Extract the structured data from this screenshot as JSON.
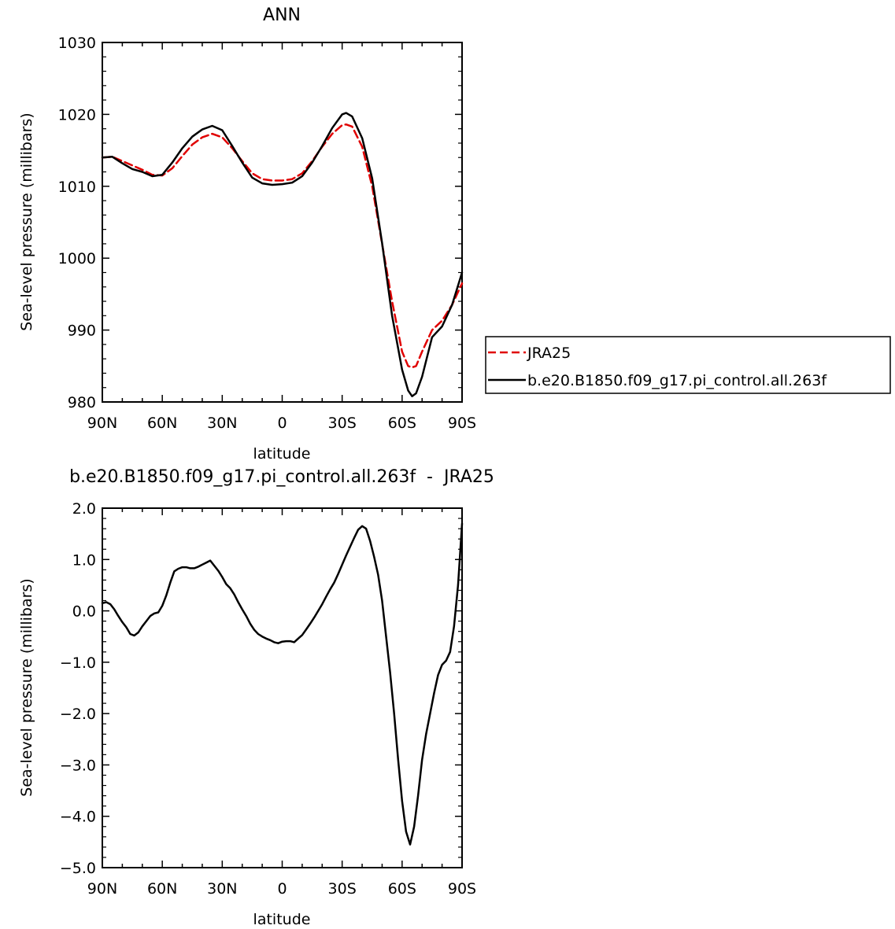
{
  "chart_data": [
    {
      "type": "line",
      "title": "ANN",
      "xlabel": "latitude",
      "ylabel": "Sea-level pressure (millibars)",
      "xlim": [
        90,
        -90
      ],
      "ylim": [
        980,
        1030
      ],
      "xticks": [
        {
          "value": 90,
          "label": "90N"
        },
        {
          "value": 60,
          "label": "60N"
        },
        {
          "value": 30,
          "label": "30N"
        },
        {
          "value": 0,
          "label": "0"
        },
        {
          "value": -30,
          "label": "30S"
        },
        {
          "value": -60,
          "label": "60S"
        },
        {
          "value": -90,
          "label": "90S"
        }
      ],
      "yticks": [
        {
          "value": 980,
          "label": "980"
        },
        {
          "value": 990,
          "label": "990"
        },
        {
          "value": 1000,
          "label": "1000"
        },
        {
          "value": 1010,
          "label": "1010"
        },
        {
          "value": 1020,
          "label": "1020"
        },
        {
          "value": 1030,
          "label": "1030"
        }
      ],
      "legend": {
        "position": "right"
      },
      "series": [
        {
          "name": "JRA25",
          "color": "#e00000",
          "dash": "dashed",
          "x": [
            90,
            85,
            80,
            75,
            70,
            65,
            60,
            55,
            50,
            45,
            40,
            35,
            30,
            25,
            20,
            15,
            10,
            5,
            0,
            -5,
            -10,
            -15,
            -20,
            -25,
            -30,
            -32,
            -35,
            -40,
            -45,
            -50,
            -55,
            -60,
            -63,
            -65,
            -67,
            -70,
            -75,
            -80,
            -85,
            -90
          ],
          "y": [
            1014.0,
            1014.1,
            1013.5,
            1012.9,
            1012.3,
            1011.6,
            1011.5,
            1012.5,
            1014.2,
            1015.8,
            1016.8,
            1017.3,
            1016.8,
            1015.3,
            1013.5,
            1011.8,
            1011.0,
            1010.8,
            1010.8,
            1011.0,
            1011.8,
            1013.5,
            1015.5,
            1017.3,
            1018.5,
            1018.6,
            1018.3,
            1015.5,
            1010.0,
            1002.0,
            994.0,
            987.0,
            985.0,
            984.8,
            985.0,
            987.0,
            990.0,
            991.3,
            993.5,
            996.5
          ]
        },
        {
          "name": "b.e20.B1850.f09_g17.pi_control.all.263f",
          "color": "#000000",
          "dash": "solid",
          "x": [
            90,
            85,
            80,
            75,
            70,
            65,
            60,
            55,
            50,
            45,
            40,
            35,
            30,
            25,
            20,
            15,
            10,
            5,
            0,
            -5,
            -10,
            -15,
            -20,
            -25,
            -30,
            -32,
            -35,
            -40,
            -45,
            -50,
            -55,
            -60,
            -63,
            -65,
            -67,
            -70,
            -75,
            -80,
            -85,
            -90
          ],
          "y": [
            1014.0,
            1014.1,
            1013.2,
            1012.4,
            1012.0,
            1011.4,
            1011.6,
            1013.3,
            1015.3,
            1016.9,
            1017.9,
            1018.4,
            1017.8,
            1015.6,
            1013.3,
            1011.2,
            1010.4,
            1010.2,
            1010.3,
            1010.5,
            1011.4,
            1013.3,
            1015.6,
            1018.1,
            1020.0,
            1020.2,
            1019.7,
            1016.7,
            1011.1,
            1002.1,
            992.0,
            984.5,
            981.6,
            980.8,
            981.2,
            983.5,
            989.0,
            990.5,
            993.5,
            998.0
          ]
        }
      ]
    },
    {
      "type": "line",
      "title": "b.e20.B1850.f09_g17.pi_control.all.263f  -  JRA25",
      "xlabel": "latitude",
      "ylabel": "Sea-level pressure (millibars)",
      "xlim": [
        90,
        -90
      ],
      "ylim": [
        -5.0,
        2.0
      ],
      "xticks": [
        {
          "value": 90,
          "label": "90N"
        },
        {
          "value": 60,
          "label": "60N"
        },
        {
          "value": 30,
          "label": "30N"
        },
        {
          "value": 0,
          "label": "0"
        },
        {
          "value": -30,
          "label": "30S"
        },
        {
          "value": -60,
          "label": "60S"
        },
        {
          "value": -90,
          "label": "90S"
        }
      ],
      "yticks": [
        {
          "value": -5,
          "label": "−5.0"
        },
        {
          "value": -4,
          "label": "−4.0"
        },
        {
          "value": -3,
          "label": "−3.0"
        },
        {
          "value": -2,
          "label": "−2.0"
        },
        {
          "value": -1,
          "label": "−1.0"
        },
        {
          "value": 0,
          "label": "0.0"
        },
        {
          "value": 1,
          "label": "1.0"
        },
        {
          "value": 2,
          "label": "2.0"
        }
      ],
      "series": [
        {
          "color": "#000000",
          "dash": "solid",
          "x": [
            90,
            88,
            86,
            84,
            82,
            80,
            78,
            76,
            74,
            72,
            70,
            68,
            66,
            64,
            62,
            60,
            58,
            56,
            54,
            52,
            50,
            48,
            46,
            44,
            42,
            40,
            38,
            36,
            34,
            32,
            30,
            28,
            26,
            24,
            22,
            20,
            18,
            16,
            14,
            12,
            10,
            8,
            6,
            4,
            2,
            0,
            -2,
            -4,
            -6,
            -8,
            -10,
            -12,
            -14,
            -16,
            -18,
            -20,
            -22,
            -24,
            -26,
            -28,
            -30,
            -32,
            -34,
            -36,
            -38,
            -40,
            -42,
            -44,
            -46,
            -48,
            -50,
            -52,
            -54,
            -56,
            -58,
            -60,
            -62,
            -64,
            -66,
            -68,
            -70,
            -72,
            -74,
            -76,
            -78,
            -80,
            -82,
            -84,
            -86,
            -88,
            -90
          ],
          "y": [
            0.15,
            0.17,
            0.13,
            0.03,
            -0.1,
            -0.22,
            -0.32,
            -0.45,
            -0.48,
            -0.42,
            -0.3,
            -0.2,
            -0.1,
            -0.05,
            -0.03,
            0.1,
            0.3,
            0.55,
            0.77,
            0.82,
            0.85,
            0.85,
            0.83,
            0.83,
            0.86,
            0.9,
            0.94,
            0.98,
            0.88,
            0.78,
            0.66,
            0.52,
            0.44,
            0.32,
            0.17,
            0.03,
            -0.1,
            -0.25,
            -0.37,
            -0.45,
            -0.5,
            -0.54,
            -0.57,
            -0.61,
            -0.63,
            -0.6,
            -0.59,
            -0.59,
            -0.61,
            -0.54,
            -0.47,
            -0.36,
            -0.25,
            -0.13,
            0.0,
            0.13,
            0.28,
            0.42,
            0.55,
            0.72,
            0.9,
            1.08,
            1.25,
            1.42,
            1.58,
            1.65,
            1.6,
            1.36,
            1.05,
            0.7,
            0.2,
            -0.5,
            -1.2,
            -2.0,
            -2.9,
            -3.7,
            -4.3,
            -4.55,
            -4.2,
            -3.6,
            -2.9,
            -2.4,
            -2.0,
            -1.6,
            -1.25,
            -1.05,
            -0.97,
            -0.8,
            -0.3,
            0.5,
            1.7
          ]
        }
      ]
    }
  ]
}
